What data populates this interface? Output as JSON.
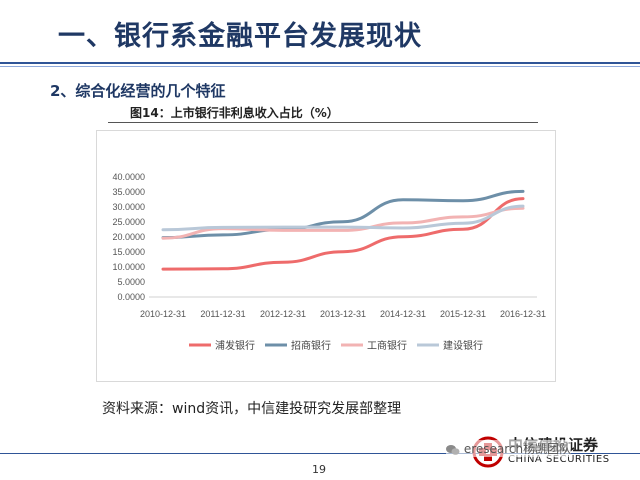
{
  "slide": {
    "title": "一、银行系金融平台发展现状",
    "section_heading": "2、综合化经营的几个特征",
    "figure_caption": "图14：上市银行非利息收入占比（%）",
    "source_note": "资料来源：wind资讯，中信建投研究发展部整理",
    "page_number": "19"
  },
  "logo": {
    "name_cn": "中信建投证券",
    "name_en": "CHINA SECURITIES"
  },
  "watermark": {
    "text": "eresearch杨凯团队",
    "icon": "wechat-icon"
  },
  "chart_data": {
    "type": "line",
    "title": "",
    "xlabel": "",
    "ylabel": "",
    "categories": [
      "2010-12-31",
      "2011-12-31",
      "2012-12-31",
      "2013-12-31",
      "2014-12-31",
      "2015-12-31",
      "2016-12-31"
    ],
    "y_ticks": [
      "0.0000",
      "5.0000",
      "10.0000",
      "15.0000",
      "20.0000",
      "25.0000",
      "30.0000",
      "35.0000",
      "40.0000"
    ],
    "ylim": [
      0,
      40
    ],
    "grid": false,
    "legend_position": "bottom",
    "series": [
      {
        "name": "浦发银行",
        "color": "#ee6b6b",
        "values": [
          9.3,
          9.4,
          11.6,
          15.1,
          20.1,
          22.6,
          32.8
        ]
      },
      {
        "name": "招商银行",
        "color": "#6d8fa8",
        "values": [
          19.8,
          20.7,
          22.5,
          25.1,
          32.4,
          32.1,
          35.2
        ]
      },
      {
        "name": "工商银行",
        "color": "#f2b3b3",
        "values": [
          19.6,
          22.8,
          22.2,
          22.2,
          24.7,
          26.7,
          29.6
        ]
      },
      {
        "name": "建设银行",
        "color": "#b9c8d8",
        "values": [
          22.4,
          23.2,
          23.3,
          23.3,
          23.0,
          24.6,
          30.3
        ]
      }
    ]
  }
}
